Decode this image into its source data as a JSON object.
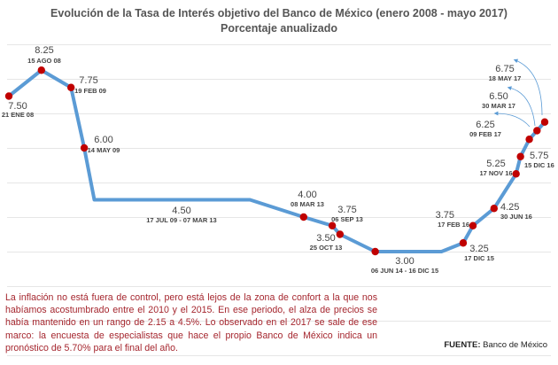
{
  "chart_data": {
    "type": "line",
    "title": "Evolución de la Tasa de Interés objetivo  del Banco de México (enero 2008 - mayo 2017)",
    "subtitle": "Porcentaje anualizado",
    "xlabel": "",
    "ylabel": "",
    "ylim": [
      0,
      9
    ],
    "xlim": [
      "2008-01",
      "2017-05"
    ],
    "grid": true,
    "line_color": "#5b9bd5",
    "marker_color": "#c00000",
    "points": [
      {
        "date": "2008-01-21",
        "value": 7.5,
        "value_label": "7.50",
        "date_label": "21 ENE 08",
        "marker": true
      },
      {
        "date": "2008-08-15",
        "value": 8.25,
        "value_label": "8.25",
        "date_label": "15 AGO 08",
        "marker": true
      },
      {
        "date": "2009-02-19",
        "value": 7.75,
        "value_label": "7.75",
        "date_label": "19 FEB 09",
        "marker": true
      },
      {
        "date": "2009-05-14",
        "value": 6.0,
        "value_label": "6.00",
        "date_label": "14 MAY 09",
        "marker": true
      },
      {
        "date": "2009-07-17",
        "value": 4.5,
        "value_label": "4.50",
        "date_label": "17 JUL 09 - 07 MAR 13",
        "marker": false
      },
      {
        "date": "2012-04-01",
        "value": 4.5,
        "marker": false
      },
      {
        "date": "2013-03-08",
        "value": 4.0,
        "value_label": "4.00",
        "date_label": "08 MAR 13",
        "marker": true
      },
      {
        "date": "2013-09-06",
        "value": 3.75,
        "value_label": "3.75",
        "date_label": "06 SEP 13",
        "marker": true
      },
      {
        "date": "2013-10-25",
        "value": 3.5,
        "value_label": "3.50",
        "date_label": "25 OCT 13",
        "marker": true
      },
      {
        "date": "2014-06-06",
        "value": 3.0,
        "value_label": "3.00",
        "date_label": "06 JUN 14 - 16 DIC 15",
        "marker": true
      },
      {
        "date": "2015-08-01",
        "value": 3.0,
        "marker": false
      },
      {
        "date": "2015-12-17",
        "value": 3.25,
        "value_label": "3.25",
        "date_label": "17 DIC 15",
        "marker": true
      },
      {
        "date": "2016-02-17",
        "value": 3.75,
        "value_label": "3.75",
        "date_label": "17 FEB 16",
        "marker": true
      },
      {
        "date": "2016-06-30",
        "value": 4.25,
        "value_label": "4.25",
        "date_label": "30 JUN 16",
        "marker": true
      },
      {
        "date": "2016-11-17",
        "value": 5.25,
        "value_label": "5.25",
        "date_label": "17 NOV 16",
        "marker": true
      },
      {
        "date": "2016-12-15",
        "value": 5.75,
        "value_label": "5.75",
        "date_label": "15 DIC 16",
        "marker": true
      },
      {
        "date": "2017-02-09",
        "value": 6.25,
        "value_label": "6.25",
        "date_label": "09 FEB 17",
        "marker": true
      },
      {
        "date": "2017-03-30",
        "value": 6.5,
        "value_label": "6.50",
        "date_label": "30 MAR 17",
        "marker": true
      },
      {
        "date": "2017-05-18",
        "value": 6.75,
        "value_label": "6.75",
        "date_label": "18 MAY 17",
        "marker": true
      }
    ]
  },
  "note": "La inflación no está fuera de control, pero está lejos de la zona de confort a la que nos habíamos acostumbrado entre el 2010 y el 2015. En ese periodo, el alza de precios se había mantenido en un rango de 2.15 a 4.5%. Lo observado en el 2017 se sale de ese marco: la encuesta de especialistas que hace el propio Banco de México indica un pronóstico de 5.70% para el final del año.",
  "source_label": "FUENTE:",
  "source_value": "Banco de México"
}
